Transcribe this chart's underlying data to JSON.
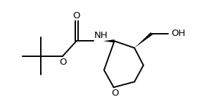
{
  "bg_color": "#ffffff",
  "line_color": "#000000",
  "text_color": "#000000",
  "label_NH": "NH",
  "label_O_ester": "O",
  "label_O_ring": "O",
  "label_OH": "OH",
  "label_O_carbonyl": "O",
  "figsize": [
    2.8,
    1.55
  ],
  "dpi": 100
}
